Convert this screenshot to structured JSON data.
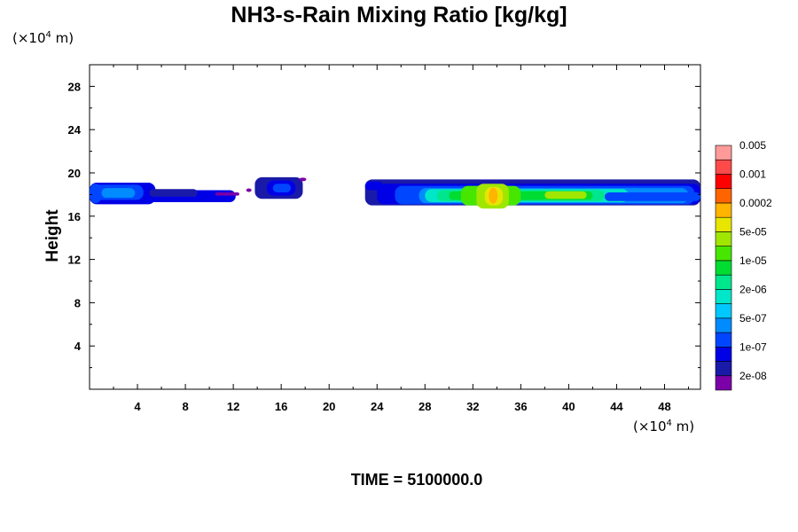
{
  "chart_data": {
    "type": "heatmap",
    "title": "NH3-s-Rain Mixing Ratio [kg/kg]",
    "xlabel_unit": "(×10⁴ m)",
    "ylabel_unit": "(×10⁴ m)",
    "ylabel": "Height",
    "footer": "TIME = 5100000.0",
    "x_range": [
      0,
      51
    ],
    "y_range": [
      0,
      30
    ],
    "x_ticks": [
      4,
      8,
      12,
      16,
      20,
      24,
      28,
      32,
      36,
      40,
      44,
      48
    ],
    "y_ticks": [
      4,
      8,
      12,
      16,
      20,
      24,
      28
    ],
    "colorbar": {
      "colors": [
        "#7b00a8",
        "#1a1aa8",
        "#0000e6",
        "#0046ff",
        "#008cff",
        "#00c8ff",
        "#00e6c8",
        "#00e68c",
        "#00dc32",
        "#46e600",
        "#a0e600",
        "#e6e600",
        "#ffb400",
        "#ff6400",
        "#ff0000",
        "#ff4a4a",
        "#ff9a9a"
      ],
      "labels": [
        "2e-08",
        "1e-07",
        "5e-07",
        "2e-06",
        "1e-05",
        "5e-05",
        "0.0002",
        "0.001",
        "0.005"
      ]
    },
    "regions": [
      {
        "x": [
          0,
          12.5
        ],
        "y": [
          17.2,
          19.1
        ],
        "max_level": "2e-08 to 1e-07"
      },
      {
        "x": [
          13.8,
          17.8
        ],
        "y": [
          17.6,
          19.6
        ],
        "max_level": "1e-07"
      },
      {
        "x": [
          23,
          51
        ],
        "y": [
          16.5,
          19.6
        ],
        "max_level": "5e-05 to 0.0002 peak near x=33.5"
      }
    ]
  }
}
